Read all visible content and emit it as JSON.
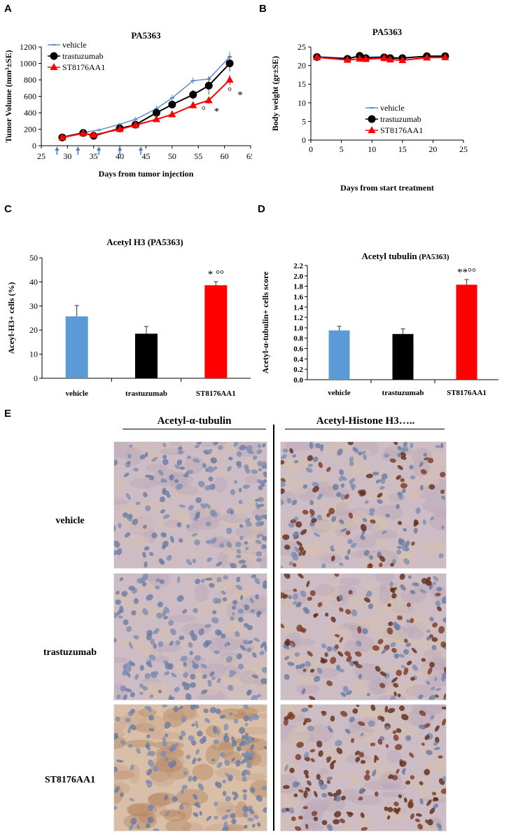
{
  "panel_letters": {
    "a": "A",
    "b": "B",
    "c": "C",
    "d": "D",
    "e": "E"
  },
  "colors": {
    "vehicle": "#5b8ec9",
    "trastuzumab": "#000000",
    "st8176aa1": "#ff0000",
    "bar_vehicle": "#5b9bd5",
    "bar_trastuzumab": "#000000",
    "bar_st8176aa1": "#ff0000",
    "arrows": "#4a7ab8"
  },
  "chart_data": [
    {
      "panel": "A",
      "type": "line",
      "title": "PA5363",
      "xlabel": "Days from tumor injection",
      "ylabel": "Tumor Volume (mm³±SE)",
      "xlim": [
        25,
        65
      ],
      "ylim": [
        0,
        1200
      ],
      "xticks": [
        25,
        30,
        35,
        40,
        45,
        50,
        55,
        60,
        65
      ],
      "yticks": [
        0,
        200,
        400,
        600,
        800,
        1000,
        1200
      ],
      "legend_position": "top-left",
      "series": [
        {
          "name": "vehicle",
          "color": "#5b8ec9",
          "marker": "dash",
          "x": [
            29,
            33,
            36,
            40,
            43,
            47,
            50,
            54,
            57,
            61
          ],
          "y": [
            110,
            160,
            190,
            260,
            320,
            450,
            580,
            790,
            810,
            1080
          ],
          "err": [
            20,
            20,
            20,
            20,
            30,
            40,
            40,
            40,
            40,
            60
          ]
        },
        {
          "name": "trastuzumab",
          "color": "#000000",
          "marker": "circle",
          "x": [
            29,
            33,
            35,
            40,
            43,
            47,
            50,
            54,
            57,
            61
          ],
          "y": [
            100,
            155,
            120,
            210,
            255,
            400,
            500,
            620,
            730,
            1000
          ],
          "err": [
            15,
            20,
            15,
            30,
            30,
            50,
            40,
            60,
            110,
            100
          ]
        },
        {
          "name": "ST8176AA1",
          "color": "#ff0000",
          "marker": "triangle",
          "x": [
            29,
            33,
            35,
            40,
            43,
            47,
            50,
            54,
            57,
            61
          ],
          "y": [
            100,
            150,
            130,
            200,
            250,
            320,
            380,
            490,
            550,
            800
          ],
          "err": [
            15,
            15,
            15,
            20,
            25,
            30,
            30,
            40,
            40,
            60
          ]
        }
      ],
      "treatment_arrow_days": [
        28,
        32,
        36,
        40,
        44
      ],
      "annotations": [
        {
          "text": "°",
          "x": 56,
          "y": 390
        },
        {
          "text": "*",
          "x": 58.5,
          "y": 380
        },
        {
          "text": "°",
          "x": 61,
          "y": 620
        },
        {
          "text": "*",
          "x": 63,
          "y": 580
        }
      ]
    },
    {
      "panel": "B",
      "type": "line",
      "title": "PA5363",
      "xlabel": "Days from start treatment",
      "ylabel": "Body weight (gr±SE)",
      "xlim": [
        0,
        25
      ],
      "ylim": [
        0,
        25
      ],
      "xticks": [
        0,
        5,
        10,
        15,
        20,
        25
      ],
      "yticks": [
        0,
        5,
        10,
        15,
        20,
        25
      ],
      "legend_position": "center",
      "series": [
        {
          "name": "vehicle",
          "color": "#5b8ec9",
          "marker": "dash",
          "x": [
            1,
            6,
            8,
            9,
            12,
            13,
            15,
            19,
            22
          ],
          "y": [
            22.4,
            22.0,
            22.5,
            22.3,
            22.4,
            22.2,
            22.1,
            22.5,
            22.6
          ]
        },
        {
          "name": "trastuzumab",
          "color": "#000000",
          "marker": "circle",
          "x": [
            1,
            6,
            8,
            9,
            12,
            13,
            15,
            19,
            22
          ],
          "y": [
            22.3,
            21.8,
            22.6,
            22.0,
            22.2,
            22.0,
            22.0,
            22.5,
            22.5
          ]
        },
        {
          "name": "ST8176AA1",
          "color": "#ff0000",
          "marker": "triangle",
          "x": [
            1,
            6,
            8,
            9,
            12,
            13,
            15,
            19,
            22
          ],
          "y": [
            22.2,
            21.5,
            21.8,
            21.7,
            22.0,
            21.6,
            21.4,
            22.1,
            22.2
          ]
        }
      ]
    },
    {
      "panel": "C",
      "type": "bar",
      "title": "Acetyl H3 (PA5363)",
      "xlabel": "",
      "ylabel": "Aceyl-H3+ cells (%)",
      "ylim": [
        0,
        50
      ],
      "yticks": [
        0,
        10,
        20,
        30,
        40,
        50
      ],
      "categories": [
        "vehicle",
        "trastuzumab",
        "ST8176AA1"
      ],
      "values": [
        25.7,
        18.5,
        38.6
      ],
      "errors": [
        4.5,
        3.0,
        1.5
      ],
      "bar_colors": [
        "#5b9bd5",
        "#000000",
        "#ff0000"
      ],
      "annotation": {
        "category": "ST8176AA1",
        "text": "* °°"
      }
    },
    {
      "panel": "D",
      "type": "bar",
      "title": "Acetyl tubulin",
      "title_suffix": "(PA5363)",
      "xlabel": "",
      "ylabel": "Acetyl-α-tubulin+ cells score",
      "ylim": [
        0,
        2.2
      ],
      "yticks": [
        0.0,
        0.2,
        0.4,
        0.6,
        0.8,
        1.0,
        1.2,
        1.4,
        1.6,
        1.8,
        2.0,
        2.2
      ],
      "categories": [
        "vehicle",
        "trastuzumab",
        "ST8176AA1"
      ],
      "values": [
        0.95,
        0.88,
        1.83
      ],
      "errors": [
        0.08,
        0.1,
        0.1
      ],
      "bar_colors": [
        "#5b9bd5",
        "#000000",
        "#ff0000"
      ],
      "annotation": {
        "category": "ST8176AA1",
        "text": "**°°"
      }
    }
  ],
  "panel_e": {
    "column_headers": [
      "Acetyl-α-tubulin",
      "Acetyl-Histone H3….."
    ],
    "row_labels": [
      "vehicle",
      "trastuzumab",
      "ST8176AA1"
    ]
  }
}
